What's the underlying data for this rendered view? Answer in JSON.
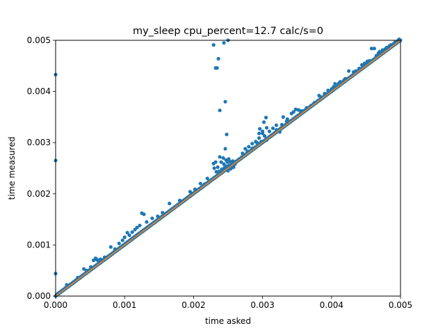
{
  "chart_data": {
    "type": "scatter",
    "title": "my_sleep cpu_percent=12.7 calc/s=0",
    "xlabel": "time asked",
    "ylabel": "time measured",
    "xlim": [
      0,
      0.005
    ],
    "ylim": [
      0,
      0.005
    ],
    "xticks": [
      "0.000",
      "0.001",
      "0.002",
      "0.003",
      "0.004",
      "0.005"
    ],
    "yticks": [
      "0.000",
      "0.001",
      "0.002",
      "0.003",
      "0.004",
      "0.005"
    ],
    "grid": false,
    "colors": {
      "points": "#1f77b4",
      "line": "#ff7f0e"
    },
    "reference_line": {
      "x": [
        0,
        0.005
      ],
      "y": [
        0,
        0.005
      ]
    },
    "series": [
      {
        "points": [
          [
            0.0,
            0.00433
          ],
          [
            0.0,
            0.00265
          ],
          [
            0.0,
            0.00044
          ],
          [
            0.00016,
            0.00022
          ],
          [
            0.00032,
            0.00036
          ],
          [
            0.00041,
            0.00053
          ],
          [
            0.00045,
            0.0005
          ],
          [
            0.00051,
            0.00057
          ],
          [
            0.00055,
            0.0007
          ],
          [
            0.00058,
            0.00074
          ],
          [
            0.0006,
            0.00071
          ],
          [
            0.00062,
            0.00069
          ],
          [
            0.00065,
            0.00072
          ],
          [
            0.00071,
            0.00076
          ],
          [
            0.0008,
            0.00096
          ],
          [
            0.00086,
            0.00092
          ],
          [
            0.00092,
            0.00103
          ],
          [
            0.00097,
            0.00109
          ],
          [
            0.001,
            0.00115
          ],
          [
            0.00104,
            0.00124
          ],
          [
            0.00107,
            0.00119
          ],
          [
            0.00111,
            0.00125
          ],
          [
            0.00115,
            0.0013
          ],
          [
            0.00118,
            0.00134
          ],
          [
            0.00122,
            0.00138
          ],
          [
            0.00125,
            0.00162
          ],
          [
            0.00128,
            0.0016
          ],
          [
            0.00132,
            0.00145
          ],
          [
            0.0014,
            0.00152
          ],
          [
            0.00148,
            0.00156
          ],
          [
            0.00155,
            0.00163
          ],
          [
            0.00165,
            0.00181
          ],
          [
            0.0018,
            0.00187
          ],
          [
            0.00195,
            0.00204
          ],
          [
            0.00202,
            0.00209
          ],
          [
            0.0021,
            0.0022
          ],
          [
            0.00216,
            0.00219
          ],
          [
            0.0022,
            0.0023
          ],
          [
            0.00225,
            0.00226
          ],
          [
            0.00229,
            0.00259
          ],
          [
            0.0023,
            0.0025
          ],
          [
            0.00232,
            0.00262
          ],
          [
            0.00233,
            0.00243
          ],
          [
            0.00235,
            0.00252
          ],
          [
            0.00237,
            0.00244
          ],
          [
            0.00238,
            0.00272
          ],
          [
            0.0024,
            0.00262
          ],
          [
            0.00241,
            0.00248
          ],
          [
            0.00243,
            0.0027
          ],
          [
            0.00244,
            0.00258
          ],
          [
            0.00245,
            0.00251
          ],
          [
            0.00246,
            0.00288
          ],
          [
            0.00247,
            0.00266
          ],
          [
            0.00248,
            0.00254
          ],
          [
            0.00249,
            0.00262
          ],
          [
            0.0025,
            0.00245
          ],
          [
            0.00251,
            0.00268
          ],
          [
            0.00252,
            0.00256
          ],
          [
            0.00253,
            0.00263
          ],
          [
            0.00254,
            0.00249
          ],
          [
            0.00256,
            0.00258
          ],
          [
            0.00257,
            0.00264
          ],
          [
            0.00258,
            0.00252
          ],
          [
            0.0026,
            0.00258
          ],
          [
            0.00262,
            0.00263
          ],
          [
            0.00229,
            0.00491
          ],
          [
            0.00232,
            0.00446
          ],
          [
            0.00234,
            0.00446
          ],
          [
            0.00236,
            0.00464
          ],
          [
            0.00238,
            0.00363
          ],
          [
            0.00244,
            0.00495
          ],
          [
            0.0025,
            0.005
          ],
          [
            0.00246,
            0.0038
          ],
          [
            0.00248,
            0.00316
          ],
          [
            0.0027,
            0.00272
          ],
          [
            0.0028,
            0.00281
          ],
          [
            0.00285,
            0.00289
          ],
          [
            0.0029,
            0.00302
          ],
          [
            0.00295,
            0.00309
          ],
          [
            0.00298,
            0.00302
          ],
          [
            0.003,
            0.00318
          ],
          [
            0.00303,
            0.00313
          ],
          [
            0.00306,
            0.00305
          ],
          [
            0.0031,
            0.00322
          ],
          [
            0.00315,
            0.00328
          ],
          [
            0.0032,
            0.00325
          ],
          [
            0.00325,
            0.00321
          ],
          [
            0.0033,
            0.0035
          ],
          [
            0.00336,
            0.00346
          ],
          [
            0.00342,
            0.00357
          ],
          [
            0.00348,
            0.00365
          ],
          [
            0.00352,
            0.00364
          ],
          [
            0.00358,
            0.00362
          ],
          [
            0.00364,
            0.00368
          ],
          [
            0.0037,
            0.00372
          ],
          [
            0.00382,
            0.00392
          ],
          [
            0.0039,
            0.00396
          ],
          [
            0.004,
            0.00405
          ],
          [
            0.00405,
            0.00415
          ],
          [
            0.0041,
            0.00415
          ],
          [
            0.00413,
            0.00419
          ],
          [
            0.00418,
            0.00422
          ],
          [
            0.0042,
            0.00425
          ],
          [
            0.00425,
            0.0044
          ],
          [
            0.00432,
            0.00438
          ],
          [
            0.0044,
            0.00445
          ],
          [
            0.00448,
            0.00455
          ],
          [
            0.00455,
            0.0046
          ],
          [
            0.00458,
            0.00484
          ],
          [
            0.00462,
            0.00484
          ],
          [
            0.00465,
            0.0047
          ],
          [
            0.0047,
            0.00478
          ],
          [
            0.00478,
            0.00483
          ],
          [
            0.00484,
            0.00489
          ],
          [
            0.0049,
            0.00493
          ],
          [
            0.00496,
            0.00499
          ],
          [
            0.00296,
            0.00327
          ],
          [
            0.003,
            0.00322
          ],
          [
            0.00302,
            0.0034
          ],
          [
            0.00305,
            0.00349
          ],
          [
            0.00306,
            0.00329
          ],
          [
            0.00295,
            0.00318
          ],
          [
            0.00292,
            0.003
          ],
          [
            0.00285,
            0.00298
          ],
          [
            0.0028,
            0.00292
          ],
          [
            0.00275,
            0.00288
          ],
          [
            0.00271,
            0.00279
          ],
          [
            0.00278,
            0.00283
          ],
          [
            0.0032,
            0.00334
          ],
          [
            0.00328,
            0.00335
          ],
          [
            0.00335,
            0.00342
          ],
          [
            0.00345,
            0.0036
          ],
          [
            0.00355,
            0.00362
          ],
          [
            0.00362,
            0.00364
          ],
          [
            0.00375,
            0.00378
          ],
          [
            0.00385,
            0.00389
          ],
          [
            0.00395,
            0.00402
          ],
          [
            0.00403,
            0.00409
          ],
          [
            0.00412,
            0.00418
          ],
          [
            0.00435,
            0.0044
          ],
          [
            0.00444,
            0.00452
          ],
          [
            0.00452,
            0.00459
          ],
          [
            0.00468,
            0.00475
          ],
          [
            0.00474,
            0.00481
          ],
          [
            0.0048,
            0.00486
          ],
          [
            0.00486,
            0.00491
          ],
          [
            0.00492,
            0.00496
          ],
          [
            0.00498,
            0.00502
          ]
        ]
      }
    ]
  }
}
